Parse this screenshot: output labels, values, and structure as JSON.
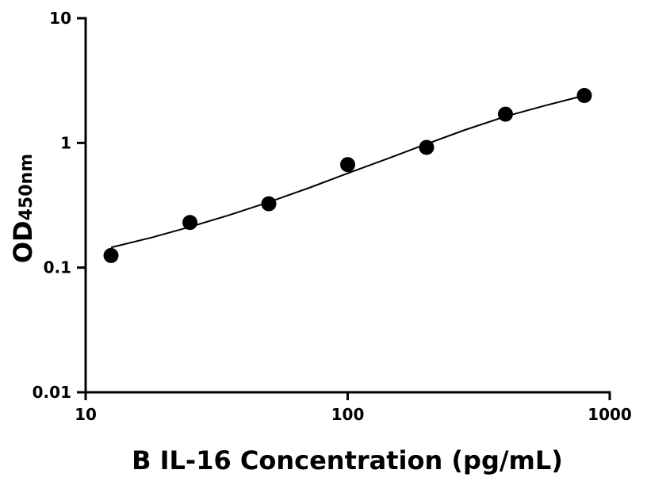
{
  "chart_data": {
    "type": "scatter",
    "xlabel": "B IL-16 Concentration (pg/mL)",
    "ylabel": {
      "main": "OD",
      "subscript": "450nm"
    },
    "xscale": "log",
    "yscale": "log",
    "xlim": [
      10,
      1000
    ],
    "ylim": [
      0.01,
      10
    ],
    "x_ticks": [
      {
        "value": 10,
        "label": "10"
      },
      {
        "value": 100,
        "label": "100"
      },
      {
        "value": 1000,
        "label": "1000"
      }
    ],
    "y_ticks": [
      {
        "value": 0.01,
        "label": "0.01"
      },
      {
        "value": 0.1,
        "label": "0.1"
      },
      {
        "value": 1,
        "label": "1"
      },
      {
        "value": 10,
        "label": "10"
      }
    ],
    "series": [
      {
        "kind": "points",
        "x": [
          12.5,
          25,
          50,
          100,
          200,
          400,
          800
        ],
        "y": [
          0.125,
          0.23,
          0.325,
          0.67,
          0.92,
          1.7,
          2.4
        ]
      },
      {
        "kind": "fit-curve",
        "x": [
          12.5,
          18,
          25,
          35,
          50,
          70,
          100,
          140,
          200,
          280,
          400,
          560,
          800
        ],
        "y": [
          0.145,
          0.175,
          0.212,
          0.262,
          0.335,
          0.43,
          0.57,
          0.74,
          0.98,
          1.27,
          1.63,
          1.98,
          2.4
        ]
      }
    ],
    "grid": false,
    "legend": "none",
    "colors": {
      "points": "#000000",
      "curve": "#000000",
      "axes": "#000000"
    }
  }
}
